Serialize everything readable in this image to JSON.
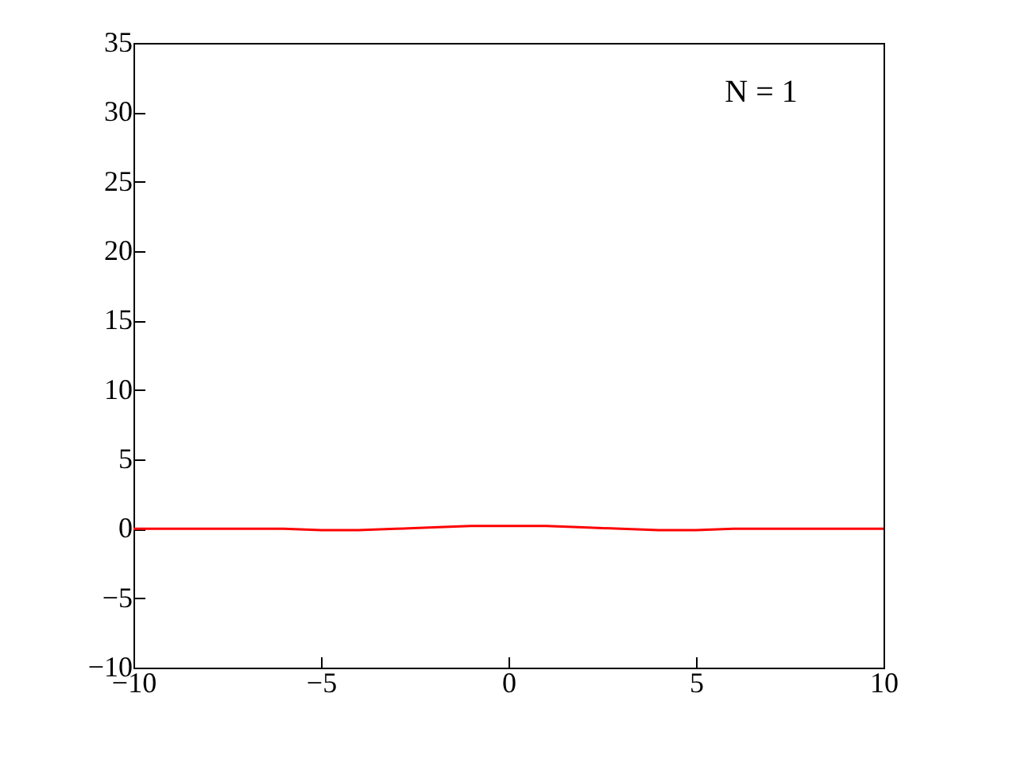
{
  "chart_data": {
    "type": "line",
    "annotations": [
      "N = 1"
    ],
    "x": [
      -10,
      -8,
      -6,
      -5,
      -4,
      -3,
      -2,
      -1,
      0,
      1,
      2,
      3,
      4,
      5,
      6,
      8,
      10
    ],
    "series": [
      {
        "color": "#ff0000",
        "values": [
          0,
          0,
          0,
          -0.1,
          -0.1,
          0,
          0.1,
          0.2,
          0.2,
          0.2,
          0.1,
          0,
          -0.1,
          -0.1,
          0,
          0,
          0
        ]
      }
    ],
    "xlim": [
      -10,
      10
    ],
    "xticks": [
      -10,
      -5,
      0,
      5,
      10
    ],
    "ylim": [
      -10,
      35
    ],
    "yticks": [
      -10,
      -5,
      0,
      5,
      10,
      15,
      20,
      25,
      30,
      35
    ],
    "grid": false,
    "marker": "none",
    "line_style": "solid"
  }
}
